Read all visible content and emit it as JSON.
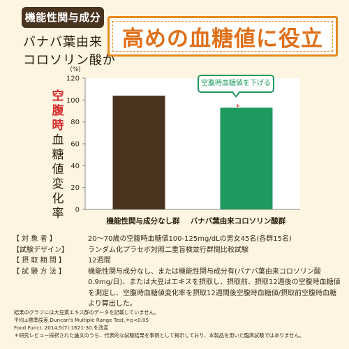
{
  "badge": "機能性関与成分",
  "subtitle": [
    "バナバ葉由来",
    "コロソリン酸が"
  ],
  "headline": "高めの血糖値に役立つ!",
  "y_axis_label_red": "空腹時",
  "y_axis_label_dark": "血糖値変化率",
  "callout": "空腹時血糖値を下げる",
  "significance_mark": "*",
  "chart_data": {
    "type": "bar",
    "unit_label": "(%)",
    "categories": [
      "機能性関与成分なし群",
      "バナバ葉由来コロソリン酸群"
    ],
    "values": [
      104,
      93
    ],
    "colors": [
      "#4a3420",
      "#1e9a5e"
    ],
    "ylim": [
      0,
      120
    ],
    "yticks": [
      0,
      20,
      40,
      60,
      80,
      100,
      120
    ],
    "grid": false
  },
  "info": [
    {
      "key": "【 対 象 者 】",
      "value": "20～70歳の空腹時血糖値100-125mg/dLの男女45名(各群15名)"
    },
    {
      "key": "【試験デザイン】",
      "value": "ランダム化プラセボ対照二重盲検並行群間比較試験"
    },
    {
      "key": "【 摂 取 期 間 】",
      "value": "12週間"
    },
    {
      "key": "【 試 験 方 法 】",
      "value": "機能性関与成分なし、または機能性関与成分有(バナバ葉由来コロソリン酸0.9mg/日)、または大豆はエキスを摂取し、摂取前、摂取12週後の空腹時血糖値を測定し、空腹時血糖値変化率を摂取12週間後空腹時血糖値/摂取前空腹時血糖より算出した。"
    }
  ],
  "footnotes": [
    "結果のグラフには大豆葉エキス群のデータを記載していません。",
    "平均±標準誤差,Duncan's Multiple Range Test,＊p<0.05",
    "Food Funct. 2014;5(7):1621-30.を改変",
    "＊研究レビュー採択された論文のうち、代表的な試験結果を事例として掲示しており、本製品を用いた臨床試験ではありません。"
  ]
}
